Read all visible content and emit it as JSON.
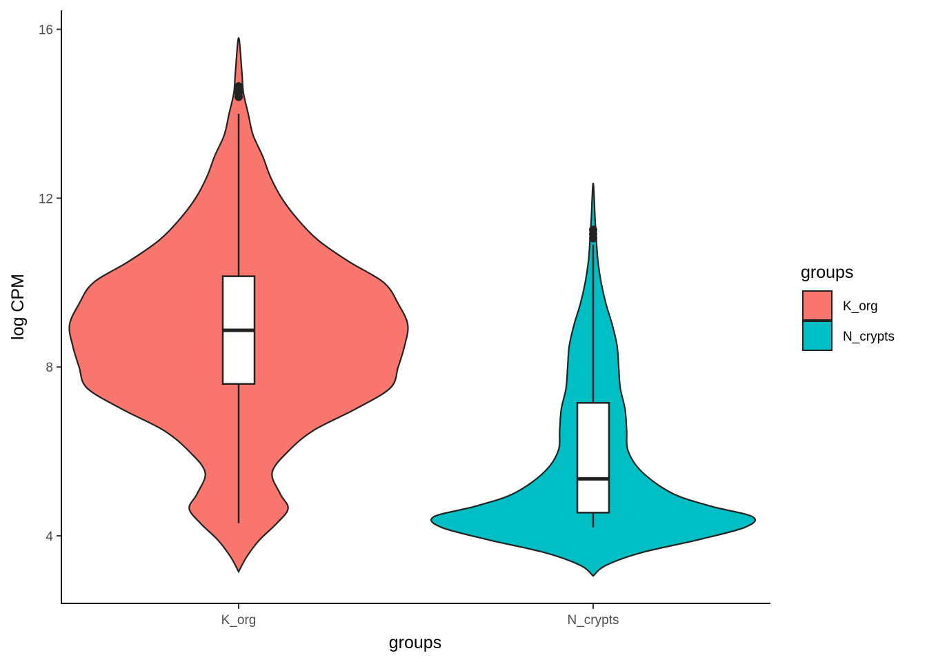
{
  "chart_data": {
    "type": "violin",
    "xlabel": "groups",
    "ylabel": "log CPM",
    "ylim": [
      2.4,
      16.45
    ],
    "yticks": [
      4,
      8,
      12,
      16
    ],
    "categories": [
      "K_org",
      "N_crypts"
    ],
    "grid": false,
    "legend": {
      "title": "groups",
      "placement": "right",
      "entries": [
        {
          "label": "K_org",
          "color": "#F8766D"
        },
        {
          "label": "N_crypts",
          "color": "#00BFC4"
        }
      ]
    },
    "series": [
      {
        "name": "K_org",
        "color": "#F8766D",
        "min": 3.15,
        "max": 15.8,
        "density_halfwidths": [
          [
            3.15,
            0.0
          ],
          [
            3.5,
            0.05
          ],
          [
            3.9,
            0.13
          ],
          [
            4.3,
            0.24
          ],
          [
            4.65,
            0.31
          ],
          [
            5.0,
            0.26
          ],
          [
            5.5,
            0.21
          ],
          [
            6.0,
            0.31
          ],
          [
            6.5,
            0.47
          ],
          [
            7.0,
            0.73
          ],
          [
            7.5,
            0.95
          ],
          [
            8.0,
            1.0
          ],
          [
            8.5,
            1.04
          ],
          [
            9.0,
            1.06
          ],
          [
            9.5,
            1.0
          ],
          [
            10.0,
            0.91
          ],
          [
            10.5,
            0.69
          ],
          [
            11.0,
            0.5
          ],
          [
            11.5,
            0.37
          ],
          [
            12.0,
            0.27
          ],
          [
            12.5,
            0.2
          ],
          [
            13.0,
            0.15
          ],
          [
            13.5,
            0.09
          ],
          [
            14.0,
            0.06
          ],
          [
            14.5,
            0.03
          ],
          [
            15.0,
            0.02
          ],
          [
            15.8,
            0.0
          ]
        ],
        "box": {
          "lower_whisker": 4.3,
          "q1": 7.6,
          "median": 8.87,
          "q3": 10.15,
          "upper_whisker": 14.0
        },
        "outliers": [
          14.4,
          14.5,
          14.6,
          14.65
        ]
      },
      {
        "name": "N_crypts",
        "color": "#00BFC4",
        "min": 3.05,
        "max": 12.35,
        "density_halfwidths": [
          [
            3.05,
            0.0
          ],
          [
            3.3,
            0.08
          ],
          [
            3.6,
            0.3
          ],
          [
            3.9,
            0.65
          ],
          [
            4.2,
            0.95
          ],
          [
            4.45,
            1.0
          ],
          [
            4.7,
            0.74
          ],
          [
            5.0,
            0.5
          ],
          [
            5.5,
            0.31
          ],
          [
            6.0,
            0.22
          ],
          [
            6.5,
            0.21
          ],
          [
            7.0,
            0.2
          ],
          [
            7.5,
            0.17
          ],
          [
            8.0,
            0.16
          ],
          [
            8.5,
            0.15
          ],
          [
            9.0,
            0.12
          ],
          [
            9.5,
            0.08
          ],
          [
            10.0,
            0.05
          ],
          [
            10.5,
            0.03
          ],
          [
            11.0,
            0.02
          ],
          [
            11.5,
            0.012
          ],
          [
            12.35,
            0.0
          ]
        ],
        "box": {
          "lower_whisker": 4.2,
          "q1": 4.55,
          "median": 5.35,
          "q3": 7.15,
          "upper_whisker": 10.9
        },
        "outliers": [
          11.05,
          11.15,
          11.25
        ]
      }
    ]
  }
}
